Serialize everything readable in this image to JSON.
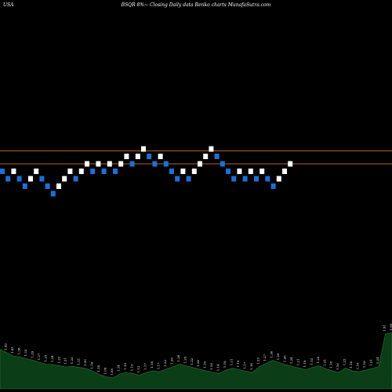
{
  "header": {
    "country": "USA",
    "title": "BSQR 8%~  Closing Daily data  Renko  charts MunafaSutra.com"
  },
  "chart_data": {
    "type": "renko",
    "title": "BSQR 8%~  Closing Daily data  Renko  charts MunafaSutra.com",
    "reference_lines": [
      1.6,
      1.53
    ],
    "brick_size": 0.04,
    "colors": {
      "up": "#ffffff",
      "down": "#1e6fd6",
      "line": "#b8651b",
      "volume": "#0b3d16",
      "volume_edge": "#2d7a3c"
    },
    "bricks": [
      {
        "dir": "down",
        "value": 1.49
      },
      {
        "dir": "down",
        "value": 1.45
      },
      {
        "dir": "up",
        "value": 1.49
      },
      {
        "dir": "down",
        "value": 1.45
      },
      {
        "dir": "down",
        "value": 1.41
      },
      {
        "dir": "up",
        "value": 1.45
      },
      {
        "dir": "up",
        "value": 1.49
      },
      {
        "dir": "down",
        "value": 1.45
      },
      {
        "dir": "down",
        "value": 1.41
      },
      {
        "dir": "down",
        "value": 1.37
      },
      {
        "dir": "up",
        "value": 1.41
      },
      {
        "dir": "up",
        "value": 1.45
      },
      {
        "dir": "up",
        "value": 1.49
      },
      {
        "dir": "down",
        "value": 1.45
      },
      {
        "dir": "up",
        "value": 1.49
      },
      {
        "dir": "up",
        "value": 1.53
      },
      {
        "dir": "down",
        "value": 1.49
      },
      {
        "dir": "up",
        "value": 1.53
      },
      {
        "dir": "down",
        "value": 1.49
      },
      {
        "dir": "up",
        "value": 1.53
      },
      {
        "dir": "down",
        "value": 1.49
      },
      {
        "dir": "up",
        "value": 1.53
      },
      {
        "dir": "up",
        "value": 1.57
      },
      {
        "dir": "down",
        "value": 1.53
      },
      {
        "dir": "up",
        "value": 1.57
      },
      {
        "dir": "up",
        "value": 1.61
      },
      {
        "dir": "down",
        "value": 1.57
      },
      {
        "dir": "down",
        "value": 1.53
      },
      {
        "dir": "up",
        "value": 1.57
      },
      {
        "dir": "down",
        "value": 1.53
      },
      {
        "dir": "down",
        "value": 1.49
      },
      {
        "dir": "down",
        "value": 1.45
      },
      {
        "dir": "up",
        "value": 1.49
      },
      {
        "dir": "down",
        "value": 1.45
      },
      {
        "dir": "up",
        "value": 1.49
      },
      {
        "dir": "up",
        "value": 1.53
      },
      {
        "dir": "up",
        "value": 1.57
      },
      {
        "dir": "up",
        "value": 1.61
      },
      {
        "dir": "down",
        "value": 1.57
      },
      {
        "dir": "down",
        "value": 1.53
      },
      {
        "dir": "down",
        "value": 1.49
      },
      {
        "dir": "down",
        "value": 1.45
      },
      {
        "dir": "up",
        "value": 1.49
      },
      {
        "dir": "down",
        "value": 1.45
      },
      {
        "dir": "up",
        "value": 1.49
      },
      {
        "dir": "down",
        "value": 1.45
      },
      {
        "dir": "up",
        "value": 1.49
      },
      {
        "dir": "down",
        "value": 1.45
      },
      {
        "dir": "down",
        "value": 1.41
      },
      {
        "dir": "up",
        "value": 1.45
      },
      {
        "dir": "up",
        "value": 1.49
      },
      {
        "dir": "up",
        "value": 1.53
      }
    ],
    "volume": [
      {
        "label": "1.45",
        "v": 0.72
      },
      {
        "label": "1.42",
        "v": 0.66
      },
      {
        "label": "1.41",
        "v": 0.6
      },
      {
        "label": "1.38",
        "v": 0.58
      },
      {
        "label": "1.33",
        "v": 0.55
      },
      {
        "label": "1.29",
        "v": 0.52
      },
      {
        "label": "1.27",
        "v": 0.48
      },
      {
        "label": "1.25",
        "v": 0.45
      },
      {
        "label": "1.24",
        "v": 0.44
      },
      {
        "label": "1.23",
        "v": 0.42
      },
      {
        "label": "1.21",
        "v": 0.4
      },
      {
        "label": "1.22",
        "v": 0.41
      },
      {
        "label": "1.21",
        "v": 0.39
      },
      {
        "label": "1.20",
        "v": 0.37
      },
      {
        "label": "1.16",
        "v": 0.32
      },
      {
        "label": "1.14",
        "v": 0.26
      },
      {
        "label": "1.09",
        "v": 0.22
      },
      {
        "label": "1.08",
        "v": 0.2
      },
      {
        "label": "1.14",
        "v": 0.27
      },
      {
        "label": "1.19",
        "v": 0.3
      },
      {
        "label": "1.15",
        "v": 0.28
      },
      {
        "label": "1.12",
        "v": 0.25
      },
      {
        "label": "1.17",
        "v": 0.3
      },
      {
        "label": "1.18",
        "v": 0.33
      },
      {
        "label": "1.17",
        "v": 0.31
      },
      {
        "label": "1.22",
        "v": 0.36
      },
      {
        "label": "1.26",
        "v": 0.4
      },
      {
        "label": "1.28",
        "v": 0.45
      },
      {
        "label": "1.25",
        "v": 0.42
      },
      {
        "label": "1.22",
        "v": 0.39
      },
      {
        "label": "1.20",
        "v": 0.36
      },
      {
        "label": "1.19",
        "v": 0.33
      },
      {
        "label": "1.16",
        "v": 0.3
      },
      {
        "label": "1.14",
        "v": 0.28
      },
      {
        "label": "1.18",
        "v": 0.34
      },
      {
        "label": "1.21",
        "v": 0.38
      },
      {
        "label": "1.19",
        "v": 0.35
      },
      {
        "label": "1.17",
        "v": 0.32
      },
      {
        "label": "1.16",
        "v": 0.3
      },
      {
        "label": "1.23",
        "v": 0.4
      },
      {
        "label": "1.27",
        "v": 0.46
      },
      {
        "label": "1.30",
        "v": 0.52
      },
      {
        "label": "1.29",
        "v": 0.48
      },
      {
        "label": "1.26",
        "v": 0.44
      },
      {
        "label": "1.24",
        "v": 0.41
      },
      {
        "label": "1.21",
        "v": 0.38
      },
      {
        "label": "1.19",
        "v": 0.35
      },
      {
        "label": "1.22",
        "v": 0.39
      },
      {
        "label": "1.25",
        "v": 0.42
      },
      {
        "label": "1.21",
        "v": 0.37
      },
      {
        "label": "1.18",
        "v": 0.33
      },
      {
        "label": "1.16",
        "v": 0.3
      },
      {
        "label": "1.22",
        "v": 0.38
      },
      {
        "label": "1.18",
        "v": 0.33
      },
      {
        "label": "1.16",
        "v": 0.31
      },
      {
        "label": "1.19",
        "v": 0.34
      },
      {
        "label": "1.21",
        "v": 0.37
      },
      {
        "label": "1.24",
        "v": 0.41
      },
      {
        "label": "1.91",
        "v": 1.0
      },
      {
        "label": "1.93",
        "v": 1.02
      }
    ]
  }
}
